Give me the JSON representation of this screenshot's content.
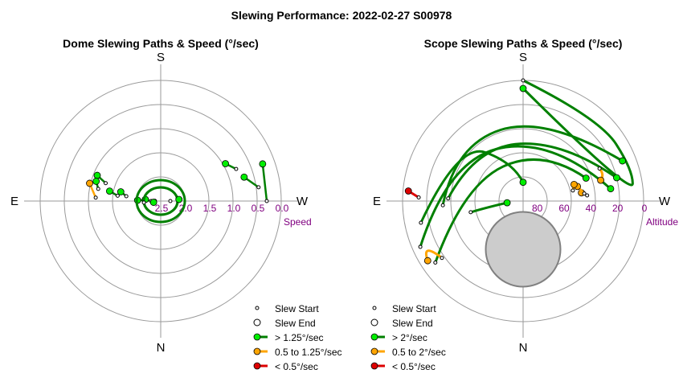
{
  "title": "Slewing Performance: 2022-02-27 S00978",
  "chart_data": [
    {
      "type": "polar",
      "title": "Dome Slewing Paths & Speed (°/sec)",
      "directions": {
        "top": "S",
        "bottom": "N",
        "left": "E",
        "right": "W"
      },
      "radial_label": "Speed",
      "radial_ticks": [
        "2.5",
        "2.0",
        "1.5",
        "1.0",
        "0.5",
        "0.0"
      ],
      "radial_range": [
        2.5,
        0.0
      ],
      "grid": true,
      "colors": {
        "fast": "#00ee00",
        "medium": "#ffa500",
        "slow": "#dd0000",
        "path": "#008000",
        "path_medium": "#ffa500"
      },
      "slews": [
        {
          "start": {
            "az": 98,
            "speed": 1.78
          },
          "end": {
            "az": 103,
            "speed": 1.65
          },
          "speed_class": "fast",
          "loop": false
        },
        {
          "start": {
            "az": 97,
            "speed": 1.6
          },
          "end": {
            "az": 101,
            "speed": 1.42
          },
          "speed_class": "fast",
          "loop": false
        },
        {
          "start": {
            "az": 108,
            "speed": 1.3
          },
          "end": {
            "az": 112,
            "speed": 1.08
          },
          "speed_class": "fast",
          "loop": false
        },
        {
          "start": {
            "az": 92,
            "speed": 2.38
          },
          "end": {
            "az": 92,
            "speed": 2.02
          },
          "speed_class": "fast",
          "loop": false
        },
        {
          "start": {
            "az": 93,
            "speed": 1.15
          },
          "end": {
            "az": 104,
            "speed": 0.98
          },
          "speed_class": "medium",
          "loop": false
        },
        {
          "start": {
            "az": 101,
            "speed": 1.18
          },
          "end": {
            "az": 107,
            "speed": 1.1
          },
          "speed_class": "fast",
          "loop": false
        },
        {
          "start": {
            "az": 270,
            "speed": 0.3
          },
          "end": {
            "az": 250,
            "speed": 0.25
          },
          "speed_class": "fast",
          "loop": false
        },
        {
          "start": {
            "az": 262,
            "speed": 0.45
          },
          "end": {
            "az": 254,
            "speed": 0.7
          },
          "speed_class": "fast",
          "loop": false
        },
        {
          "start": {
            "az": 247,
            "speed": 0.8
          },
          "end": {
            "az": 240,
            "speed": 0.95
          },
          "speed_class": "fast",
          "loop": false
        },
        {
          "start": {
            "az": 90,
            "speed": 2.3
          },
          "end": {
            "az": 96,
            "speed": 2.18
          },
          "speed_class": "fast",
          "loop": true
        },
        {
          "start": {
            "az": 270,
            "speed": 2.3
          },
          "end": {
            "az": 265,
            "speed": 2.12
          },
          "speed_class": "fast",
          "loop": true
        },
        {
          "start": {
            "az": 85,
            "speed": 2.15
          },
          "end": {
            "az": 80,
            "speed": 2.35
          },
          "speed_class": "fast",
          "loop": true
        }
      ]
    },
    {
      "type": "polar",
      "title": "Scope Slewing Paths & Speed (°/sec)",
      "directions": {
        "top": "S",
        "bottom": "N",
        "left": "E",
        "right": "W"
      },
      "radial_label": "Altitude",
      "radial_ticks": [
        "80",
        "60",
        "40",
        "20",
        "0"
      ],
      "radial_range": [
        90,
        0
      ],
      "grid": true,
      "colors": {
        "fast": "#00ee00",
        "medium": "#ffa500",
        "slow": "#dd0000",
        "path": "#008000",
        "path_medium": "#ffa500",
        "moon_fill": "#cccccc",
        "moon_edge": "#808080"
      },
      "moon": {
        "az": 0,
        "alt": 54,
        "radius_deg": 18
      },
      "slews": [
        {
          "start": {
            "az": 180,
            "alt": 0
          },
          "end": {
            "az": 180,
            "alt": 6
          },
          "speed_class": "fast",
          "via": [
            {
              "az": 223,
              "alt": 6
            },
            {
              "az": 254,
              "alt": 5
            },
            {
              "az": 268,
              "alt": 8
            }
          ]
        },
        {
          "start": {
            "az": 78,
            "alt": 12
          },
          "end": {
            "az": 180,
            "alt": 76
          },
          "speed_class": "fast",
          "via": [
            {
              "az": 132,
              "alt": 25
            },
            {
              "az": 165,
              "alt": 60
            }
          ]
        },
        {
          "start": {
            "az": 87,
            "alt": 30
          },
          "end": {
            "az": 248,
            "alt": 10
          },
          "speed_class": "fast",
          "via": [
            {
              "az": 130,
              "alt": 24
            },
            {
              "az": 195,
              "alt": 24
            }
          ]
        },
        {
          "start": {
            "az": 92,
            "alt": 34
          },
          "end": {
            "az": 256,
            "alt": 18
          },
          "speed_class": "fast",
          "via": [
            {
              "az": 140,
              "alt": 36
            },
            {
              "az": 215,
              "alt": 36
            }
          ]
        },
        {
          "start": {
            "az": 66,
            "alt": 6
          },
          "end": {
            "az": 262,
            "alt": 24
          },
          "speed_class": "fast",
          "via": [
            {
              "az": 120,
              "alt": 26
            },
            {
              "az": 205,
              "alt": 38
            }
          ]
        },
        {
          "start": {
            "az": 55,
            "alt": 10
          },
          "end": {
            "az": 250,
            "alt": 40
          },
          "speed_class": "fast",
          "via": [
            {
              "az": 105,
              "alt": 44
            },
            {
              "az": 200,
              "alt": 48
            }
          ]
        },
        {
          "start": {
            "az": 78,
            "alt": 50
          },
          "end": {
            "az": 84,
            "alt": 78
          },
          "speed_class": "fast",
          "via": [
            {
              "az": 80,
              "alt": 62
            }
          ]
        },
        {
          "start": {
            "az": 247,
            "alt": 28
          },
          "end": {
            "az": 255,
            "alt": 30
          },
          "speed_class": "medium",
          "via": [
            {
              "az": 252,
              "alt": 26
            }
          ]
        },
        {
          "start": {
            "az": 265,
            "alt": 42
          },
          "end": {
            "az": 262,
            "alt": 46
          },
          "speed_class": "medium",
          "via": []
        },
        {
          "start": {
            "az": 263,
            "alt": 44
          },
          "end": {
            "az": 255,
            "alt": 48
          },
          "speed_class": "medium",
          "via": []
        },
        {
          "start": {
            "az": 258,
            "alt": 52
          },
          "end": {
            "az": 252,
            "alt": 50
          },
          "speed_class": "medium",
          "via": []
        },
        {
          "start": {
            "az": 55,
            "alt": 16
          },
          "end": {
            "az": 58,
            "alt": 6
          },
          "speed_class": "medium",
          "via": [
            {
              "az": 68,
              "alt": 8
            }
          ]
        },
        {
          "start": {
            "az": 92,
            "alt": 12
          },
          "end": {
            "az": 95,
            "alt": 4
          },
          "speed_class": "slow",
          "via": []
        }
      ]
    }
  ],
  "legend_dome": [
    {
      "label": "Slew Start",
      "kind": "start"
    },
    {
      "label": "Slew End",
      "kind": "end"
    },
    {
      "label": "> 1.25°/sec",
      "kind": "fast"
    },
    {
      "label": "0.5 to 1.25°/sec",
      "kind": "medium"
    },
    {
      "label": "< 0.5°/sec",
      "kind": "slow"
    }
  ],
  "legend_scope": [
    {
      "label": "Slew Start",
      "kind": "start"
    },
    {
      "label": "Slew End",
      "kind": "end"
    },
    {
      "label": "> 2°/sec",
      "kind": "fast"
    },
    {
      "label": "0.5 to 2°/sec",
      "kind": "medium"
    },
    {
      "label": "< 0.5°/sec",
      "kind": "slow"
    }
  ]
}
